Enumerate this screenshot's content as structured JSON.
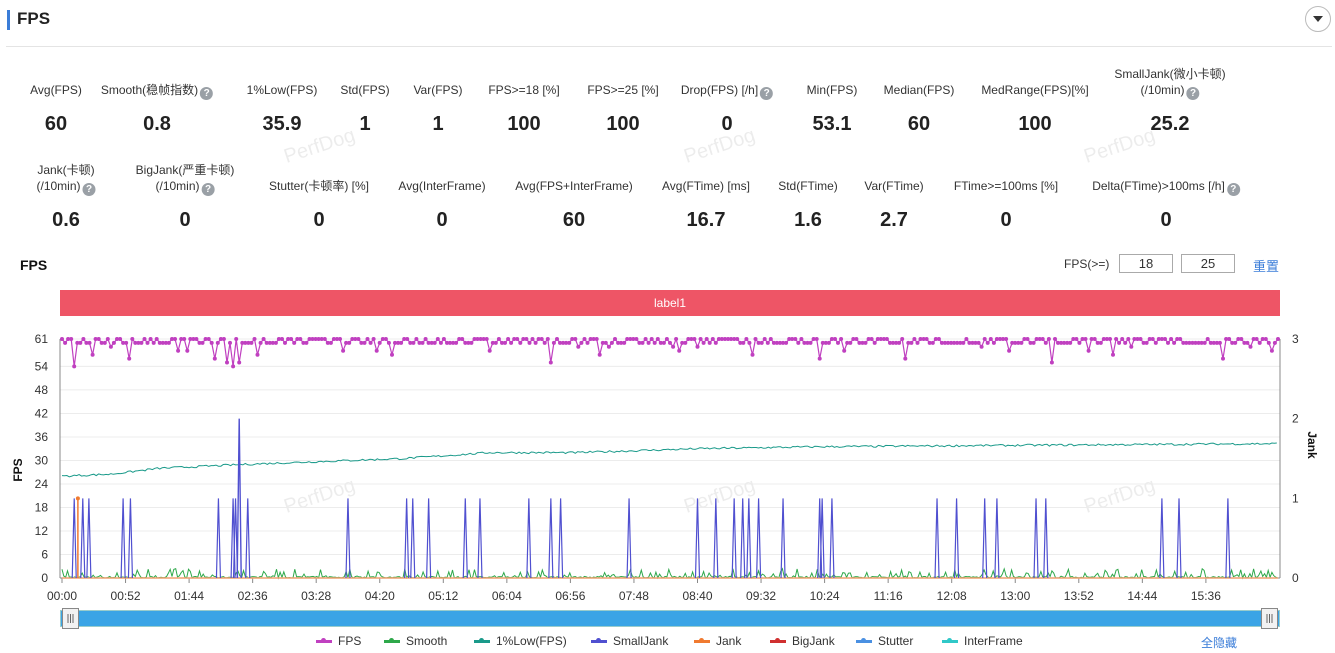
{
  "section": {
    "title": "FPS"
  },
  "metrics_row1": [
    {
      "label": "Avg(FPS)",
      "value": "60",
      "help": false
    },
    {
      "label": "Smooth(稳帧指数)",
      "value": "0.8",
      "help": true
    },
    {
      "label": "1%Low(FPS)",
      "value": "35.9",
      "help": false
    },
    {
      "label": "Std(FPS)",
      "value": "1",
      "help": false
    },
    {
      "label": "Var(FPS)",
      "value": "1",
      "help": false
    },
    {
      "label": "FPS>=18 [%]",
      "value": "100",
      "help": false
    },
    {
      "label": "FPS>=25 [%]",
      "value": "100",
      "help": false
    },
    {
      "label": "Drop(FPS) [/h]",
      "value": "0",
      "help": true
    },
    {
      "label": "Min(FPS)",
      "value": "53.1",
      "help": false
    },
    {
      "label": "Median(FPS)",
      "value": "60",
      "help": false
    },
    {
      "label": "MedRange(FPS)[%]",
      "value": "100",
      "help": false
    },
    {
      "label": "SmallJank(微小卡顿)",
      "label2": "(/10min)",
      "value": "25.2",
      "help": true
    }
  ],
  "metrics_row2": [
    {
      "label": "Jank(卡顿)",
      "label2": "(/10min)",
      "value": "0.6",
      "help": true
    },
    {
      "label": "BigJank(严重卡顿)",
      "label2": "(/10min)",
      "value": "0",
      "help": true
    },
    {
      "label": "Stutter(卡顿率) [%]",
      "value": "0",
      "help": false
    },
    {
      "label": "Avg(InterFrame)",
      "value": "0",
      "help": false
    },
    {
      "label": "Avg(FPS+InterFrame)",
      "value": "60",
      "help": false
    },
    {
      "label": "Avg(FTime) [ms]",
      "value": "16.7",
      "help": false
    },
    {
      "label": "Std(FTime)",
      "value": "1.6",
      "help": false
    },
    {
      "label": "Var(FTime)",
      "value": "2.7",
      "help": false
    },
    {
      "label": "FTime>=100ms [%]",
      "value": "0",
      "help": false
    },
    {
      "label": "Delta(FTime)>100ms [/h]",
      "value": "0",
      "help": true
    }
  ],
  "watermark": "PerfDog",
  "chart": {
    "title": "FPS",
    "threshold_label": "FPS(>=)",
    "threshold_low": "18",
    "threshold_high": "25",
    "reset_label": "重置",
    "band_label": "label1",
    "hide_all_label": "全隐藏"
  },
  "chart_data": {
    "type": "line",
    "y_left": {
      "label": "FPS",
      "ticks": [
        0,
        6,
        12,
        18,
        24,
        30,
        36,
        42,
        48,
        54,
        61
      ],
      "range": [
        0,
        61
      ]
    },
    "y_right": {
      "label": "Jank",
      "ticks": [
        0,
        1,
        2,
        3
      ],
      "range": [
        0,
        3
      ]
    },
    "x_ticks": [
      "00:00",
      "00:52",
      "01:44",
      "02:36",
      "03:28",
      "04:20",
      "05:12",
      "06:04",
      "06:56",
      "07:48",
      "08:40",
      "09:32",
      "10:24",
      "11:16",
      "12:08",
      "13:00",
      "13:52",
      "14:44",
      "15:36"
    ],
    "x_range_seconds": [
      0,
      995
    ],
    "legend": [
      {
        "name": "FPS",
        "color": "#c040c0"
      },
      {
        "name": "Smooth",
        "color": "#2ea84a"
      },
      {
        "name": "1%Low(FPS)",
        "color": "#1a9a8a"
      },
      {
        "name": "SmallJank",
        "color": "#5050d0"
      },
      {
        "name": "Jank",
        "color": "#f07a30"
      },
      {
        "name": "BigJank",
        "color": "#d03030"
      },
      {
        "name": "Stutter",
        "color": "#4a90e2"
      },
      {
        "name": "InterFrame",
        "color": "#30c8c8"
      }
    ],
    "fps_baseline": 60,
    "fps_dips": [
      {
        "t": 10,
        "v": 54
      },
      {
        "t": 25,
        "v": 57
      },
      {
        "t": 55,
        "v": 56
      },
      {
        "t": 95,
        "v": 58
      },
      {
        "t": 125,
        "v": 56
      },
      {
        "t": 135,
        "v": 55
      },
      {
        "t": 140,
        "v": 54
      },
      {
        "t": 145,
        "v": 55
      },
      {
        "t": 160,
        "v": 57
      },
      {
        "t": 230,
        "v": 58
      },
      {
        "t": 270,
        "v": 57
      },
      {
        "t": 350,
        "v": 58
      },
      {
        "t": 400,
        "v": 55
      },
      {
        "t": 440,
        "v": 57
      },
      {
        "t": 505,
        "v": 58
      },
      {
        "t": 565,
        "v": 57
      },
      {
        "t": 620,
        "v": 56
      },
      {
        "t": 640,
        "v": 58
      },
      {
        "t": 690,
        "v": 56
      },
      {
        "t": 775,
        "v": 58
      },
      {
        "t": 810,
        "v": 55
      },
      {
        "t": 860,
        "v": 57
      },
      {
        "t": 950,
        "v": 56
      },
      {
        "t": 990,
        "v": 58
      }
    ],
    "low1_points": [
      [
        0,
        26
      ],
      [
        40,
        26.5
      ],
      [
        80,
        28
      ],
      [
        150,
        29
      ],
      [
        200,
        29.6
      ],
      [
        280,
        30.5
      ],
      [
        350,
        32
      ],
      [
        420,
        32
      ],
      [
        520,
        33
      ],
      [
        620,
        33.5
      ],
      [
        750,
        33.8
      ],
      [
        850,
        34
      ],
      [
        995,
        34.3
      ]
    ],
    "smalljank_times": [
      10,
      17,
      22,
      50,
      56,
      128,
      140,
      142,
      152,
      234,
      282,
      287,
      300,
      330,
      342,
      382,
      400,
      408,
      464,
      520,
      535,
      550,
      557,
      562,
      570,
      590,
      620,
      622,
      630,
      716,
      732,
      755,
      765,
      797,
      805,
      900,
      914,
      954
    ],
    "smalljank_big": {
      "t": 145,
      "v": 2
    },
    "jank_times": [
      13
    ],
    "smooth_level": 0.05
  },
  "slider": {
    "start": 0,
    "end": 1
  }
}
